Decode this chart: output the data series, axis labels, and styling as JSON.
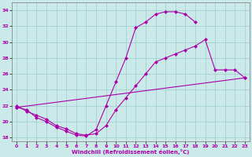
{
  "xlabel": "Windchill (Refroidissement éolien,°C)",
  "xlim": [
    -0.5,
    23.5
  ],
  "ylim": [
    17.5,
    35.0
  ],
  "yticks": [
    18,
    20,
    22,
    24,
    26,
    28,
    30,
    32,
    34
  ],
  "xticks": [
    0,
    1,
    2,
    3,
    4,
    5,
    6,
    7,
    8,
    9,
    10,
    11,
    12,
    13,
    14,
    15,
    16,
    17,
    18,
    19,
    20,
    21,
    22,
    23
  ],
  "bg_color": "#cce9e9",
  "line_color": "#aa00aa",
  "grid_color": "#99cccc",
  "line1_x": [
    0,
    1,
    2,
    3,
    4,
    5,
    6,
    7,
    8,
    9,
    10,
    11,
    12,
    13,
    14,
    15,
    16,
    17,
    18,
    19,
    20,
    21,
    22,
    23
  ],
  "line1_y": [
    22.0,
    21.3,
    20.8,
    20.3,
    19.5,
    19.1,
    18.5,
    18.3,
    18.5,
    19.5,
    21.5,
    23.0,
    24.5,
    26.0,
    27.5,
    28.0,
    28.5,
    29.0,
    29.5,
    30.3,
    26.5,
    26.5,
    26.5,
    25.5
  ],
  "line2_x": [
    0,
    1,
    2,
    3,
    4,
    5,
    6,
    7,
    8,
    9,
    10,
    11,
    12,
    13,
    14,
    15,
    16,
    17,
    18,
    19,
    20,
    21,
    22,
    23
  ],
  "line2_y": [
    21.8,
    21.5,
    20.5,
    20.0,
    19.3,
    18.8,
    18.3,
    18.2,
    19.0,
    22.0,
    25.0,
    28.0,
    31.8,
    32.5,
    33.5,
    33.8,
    33.8,
    33.5,
    32.5,
    null,
    null,
    null,
    null,
    null
  ],
  "line3_x": [
    0,
    23
  ],
  "line3_y": [
    21.8,
    25.5
  ]
}
